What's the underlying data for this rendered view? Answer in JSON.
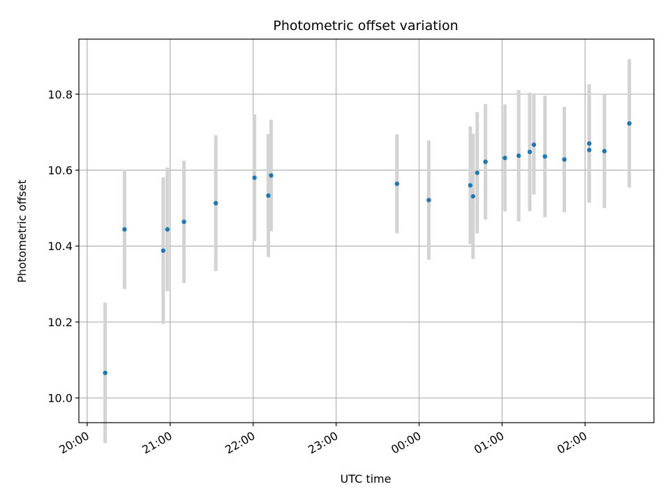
{
  "chart_data": {
    "type": "scatter",
    "title": "Photometric offset variation",
    "xlabel": "UTC time",
    "ylabel": "Photometric offset",
    "x_ticks": [
      {
        "label": "20:00",
        "hours": 0
      },
      {
        "label": "21:00",
        "hours": 1
      },
      {
        "label": "22:00",
        "hours": 2
      },
      {
        "label": "23:00",
        "hours": 3
      },
      {
        "label": "00:00",
        "hours": 4
      },
      {
        "label": "01:00",
        "hours": 5
      },
      {
        "label": "02:00",
        "hours": 6
      }
    ],
    "y_ticks": [
      10.0,
      10.2,
      10.4,
      10.6,
      10.8
    ],
    "xlim_hours": [
      -0.1,
      6.83
    ],
    "ylim": [
      9.935,
      10.945
    ],
    "grid": true,
    "marker_color": "#1f77b4",
    "errorbar_color": "#d3d3d3",
    "points": [
      {
        "t": "20:13",
        "y": 10.066,
        "err": 0.185
      },
      {
        "t": "20:27",
        "y": 10.444,
        "err": 0.157
      },
      {
        "t": "20:55",
        "y": 10.388,
        "err": 0.193
      },
      {
        "t": "20:58",
        "y": 10.444,
        "err": 0.163
      },
      {
        "t": "21:10",
        "y": 10.464,
        "err": 0.161
      },
      {
        "t": "21:33",
        "y": 10.513,
        "err": 0.179
      },
      {
        "t": "22:01",
        "y": 10.58,
        "err": 0.167
      },
      {
        "t": "22:11",
        "y": 10.533,
        "err": 0.162
      },
      {
        "t": "22:13",
        "y": 10.586,
        "err": 0.147
      },
      {
        "t": "23:44",
        "y": 10.564,
        "err": 0.13
      },
      {
        "t": "00:07",
        "y": 10.521,
        "err": 0.157
      },
      {
        "t": "00:37",
        "y": 10.56,
        "err": 0.155
      },
      {
        "t": "00:39",
        "y": 10.531,
        "err": 0.165
      },
      {
        "t": "00:42",
        "y": 10.593,
        "err": 0.16
      },
      {
        "t": "00:48",
        "y": 10.622,
        "err": 0.152
      },
      {
        "t": "01:02",
        "y": 10.632,
        "err": 0.141
      },
      {
        "t": "01:12",
        "y": 10.638,
        "err": 0.173
      },
      {
        "t": "01:20",
        "y": 10.648,
        "err": 0.156
      },
      {
        "t": "01:23",
        "y": 10.667,
        "err": 0.131
      },
      {
        "t": "01:31",
        "y": 10.636,
        "err": 0.16
      },
      {
        "t": "01:45",
        "y": 10.628,
        "err": 0.139
      },
      {
        "t": "02:03",
        "y": 10.67,
        "err": 0.156
      },
      {
        "t": "02:03",
        "y": 10.653,
        "err": 0.138
      },
      {
        "t": "02:14",
        "y": 10.65,
        "err": 0.15
      },
      {
        "t": "02:32",
        "y": 10.723,
        "err": 0.169
      }
    ]
  }
}
